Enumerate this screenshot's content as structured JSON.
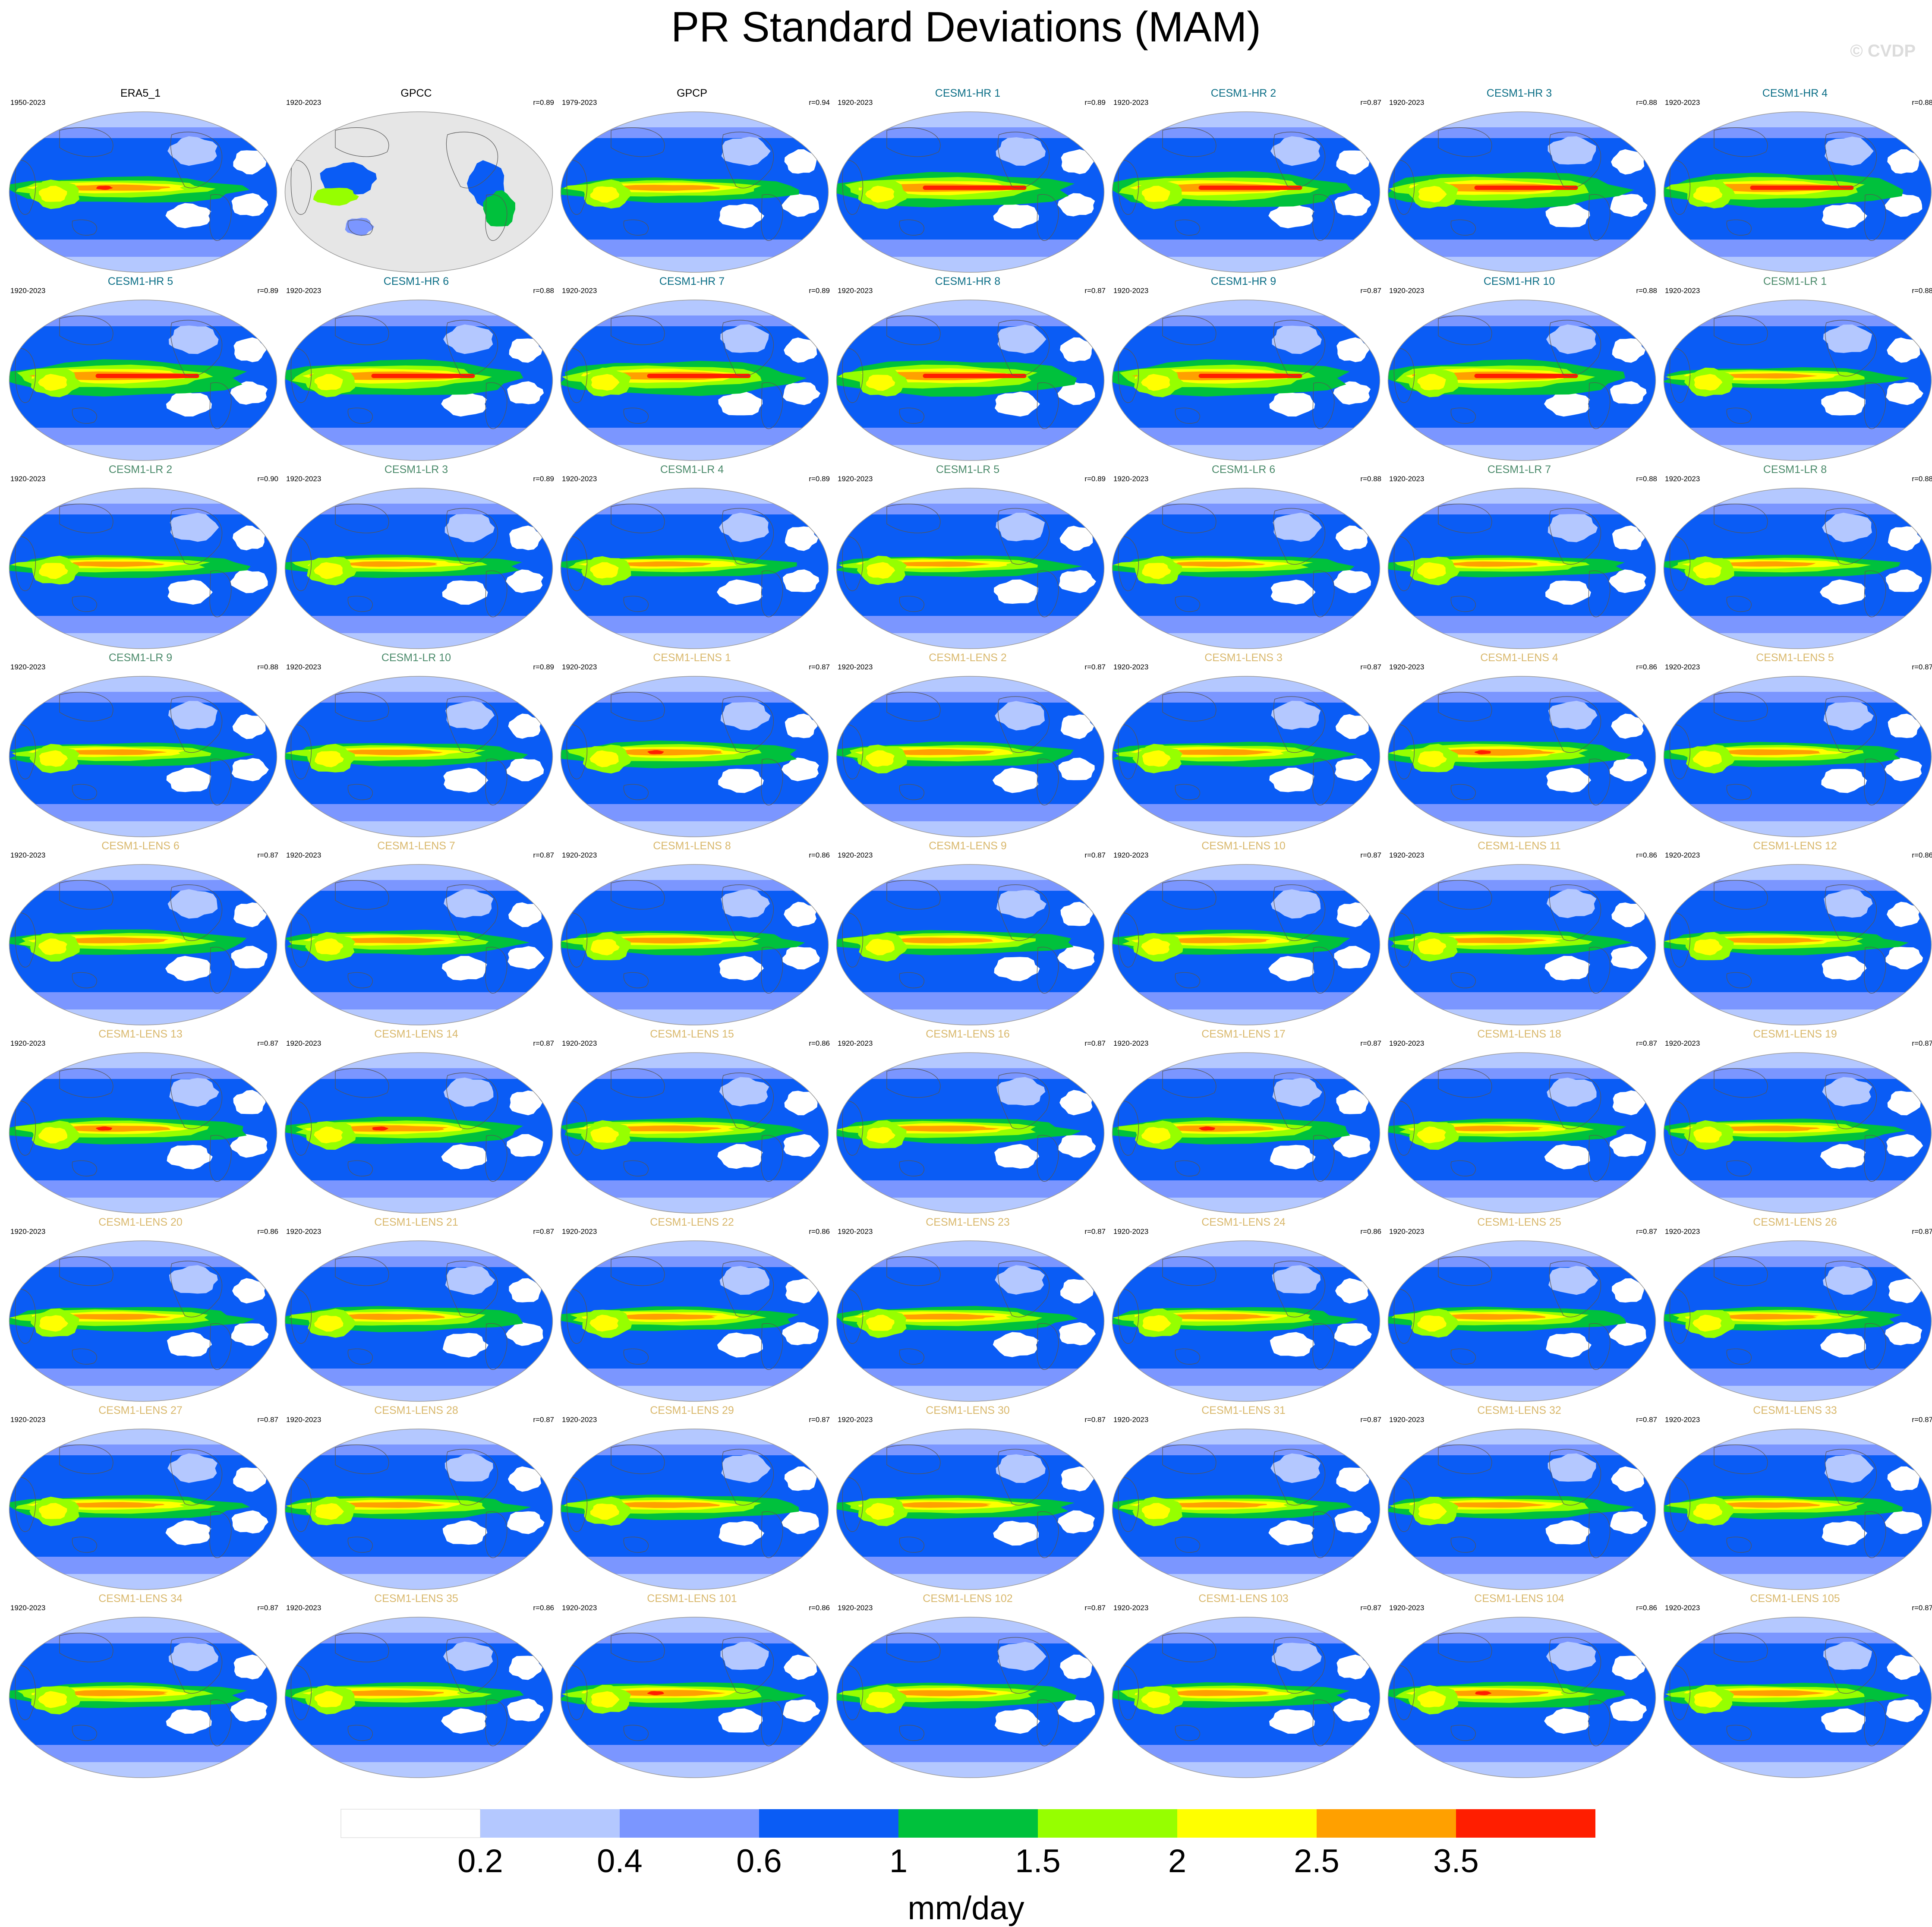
{
  "title": "PR Standard Deviations (MAM)",
  "watermark": "© CVDP",
  "colors": {
    "obs_title": "#000000",
    "cesm1_hr_title": "#0b6e86",
    "cesm1_lr_title": "#4a8a6a",
    "cesm1_lens_title": "#d9b86c",
    "land_mask": "#e6e6e6",
    "outline": "#9a9a9a",
    "coast": "#555555"
  },
  "chart_data": {
    "type": "heatmap",
    "projection": "Robinson-like global map, Pacific-centered",
    "units": "mm/day",
    "colorbar": {
      "levels": [
        0.2,
        0.4,
        0.6,
        1,
        1.5,
        2,
        2.5,
        3.5
      ],
      "tick_labels": [
        "0.2",
        "0.4",
        "0.6",
        "1",
        "1.5",
        "2",
        "2.5",
        "3.5"
      ],
      "colors": [
        "#ffffff",
        "#b4c8ff",
        "#7b96ff",
        "#0a5cf5",
        "#00c13c",
        "#96ff00",
        "#ffff00",
        "#ffa000",
        "#ff1e00"
      ]
    },
    "panels": [
      {
        "name": "ERA5_1",
        "years": "1950-2023",
        "r": "",
        "group": "obs",
        "amp": 0.95
      },
      {
        "name": "GPCC",
        "years": "1920-2023",
        "r": "r=0.89",
        "group": "obs",
        "amp": 0.6,
        "land_only": true
      },
      {
        "name": "GPCP",
        "years": "1979-2023",
        "r": "r=0.94",
        "group": "obs",
        "amp": 0.9
      },
      {
        "name": "CESM1-HR 1",
        "years": "1920-2023",
        "r": "r=0.89",
        "group": "hr",
        "amp": 1.25
      },
      {
        "name": "CESM1-HR 2",
        "years": "1920-2023",
        "r": "r=0.87",
        "group": "hr",
        "amp": 1.3
      },
      {
        "name": "CESM1-HR 3",
        "years": "1920-2023",
        "r": "r=0.88",
        "group": "hr",
        "amp": 1.3
      },
      {
        "name": "CESM1-HR 4",
        "years": "1920-2023",
        "r": "r=0.88",
        "group": "hr",
        "amp": 1.25
      },
      {
        "name": "CESM1-HR 5",
        "years": "1920-2023",
        "r": "r=0.89",
        "group": "hr",
        "amp": 1.3
      },
      {
        "name": "CESM1-HR 6",
        "years": "1920-2023",
        "r": "r=0.88",
        "group": "hr",
        "amp": 1.3
      },
      {
        "name": "CESM1-HR 7",
        "years": "1920-2023",
        "r": "r=0.89",
        "group": "hr",
        "amp": 1.25
      },
      {
        "name": "CESM1-HR 8",
        "years": "1920-2023",
        "r": "r=0.87",
        "group": "hr",
        "amp": 1.3
      },
      {
        "name": "CESM1-HR 9",
        "years": "1920-2023",
        "r": "r=0.87",
        "group": "hr",
        "amp": 1.3
      },
      {
        "name": "CESM1-HR 10",
        "years": "1920-2023",
        "r": "r=0.88",
        "group": "hr",
        "amp": 1.3
      },
      {
        "name": "CESM1-LR 1",
        "years": "1920-2023",
        "r": "r=0.88",
        "group": "lr",
        "amp": 0.78
      },
      {
        "name": "CESM1-LR 2",
        "years": "1920-2023",
        "r": "r=0.90",
        "group": "lr",
        "amp": 0.82
      },
      {
        "name": "CESM1-LR 3",
        "years": "1920-2023",
        "r": "r=0.89",
        "group": "lr",
        "amp": 0.82
      },
      {
        "name": "CESM1-LR 4",
        "years": "1920-2023",
        "r": "r=0.89",
        "group": "lr",
        "amp": 0.78
      },
      {
        "name": "CESM1-LR 5",
        "years": "1920-2023",
        "r": "r=0.89",
        "group": "lr",
        "amp": 0.78
      },
      {
        "name": "CESM1-LR 6",
        "years": "1920-2023",
        "r": "r=0.88",
        "group": "lr",
        "amp": 0.78
      },
      {
        "name": "CESM1-LR 7",
        "years": "1920-2023",
        "r": "r=0.88",
        "group": "lr",
        "amp": 0.78
      },
      {
        "name": "CESM1-LR 8",
        "years": "1920-2023",
        "r": "r=0.88",
        "group": "lr",
        "amp": 0.8
      },
      {
        "name": "CESM1-LR 9",
        "years": "1920-2023",
        "r": "r=0.88",
        "group": "lr",
        "amp": 0.85
      },
      {
        "name": "CESM1-LR 10",
        "years": "1920-2023",
        "r": "r=0.89",
        "group": "lr",
        "amp": 0.85
      },
      {
        "name": "CESM1-LENS 1",
        "years": "1920-2023",
        "r": "r=0.87",
        "group": "lens",
        "amp": 0.97
      },
      {
        "name": "CESM1-LENS 2",
        "years": "1920-2023",
        "r": "r=0.87",
        "group": "lens",
        "amp": 0.9
      },
      {
        "name": "CESM1-LENS 3",
        "years": "1920-2023",
        "r": "r=0.87",
        "group": "lens",
        "amp": 0.9
      },
      {
        "name": "CESM1-LENS 4",
        "years": "1920-2023",
        "r": "r=0.86",
        "group": "lens",
        "amp": 1.0
      },
      {
        "name": "CESM1-LENS 5",
        "years": "1920-2023",
        "r": "r=0.87",
        "group": "lens",
        "amp": 0.88
      },
      {
        "name": "CESM1-LENS 6",
        "years": "1920-2023",
        "r": "r=0.87",
        "group": "lens",
        "amp": 0.92
      },
      {
        "name": "CESM1-LENS 7",
        "years": "1920-2023",
        "r": "r=0.87",
        "group": "lens",
        "amp": 0.9
      },
      {
        "name": "CESM1-LENS 8",
        "years": "1920-2023",
        "r": "r=0.86",
        "group": "lens",
        "amp": 0.9
      },
      {
        "name": "CESM1-LENS 9",
        "years": "1920-2023",
        "r": "r=0.87",
        "group": "lens",
        "amp": 0.88
      },
      {
        "name": "CESM1-LENS 10",
        "years": "1920-2023",
        "r": "r=0.87",
        "group": "lens",
        "amp": 0.9
      },
      {
        "name": "CESM1-LENS 11",
        "years": "1920-2023",
        "r": "r=0.86",
        "group": "lens",
        "amp": 0.88
      },
      {
        "name": "CESM1-LENS 12",
        "years": "1920-2023",
        "r": "r=0.86",
        "group": "lens",
        "amp": 0.88
      },
      {
        "name": "CESM1-LENS 13",
        "years": "1920-2023",
        "r": "r=0.87",
        "group": "lens",
        "amp": 0.95
      },
      {
        "name": "CESM1-LENS 14",
        "years": "1920-2023",
        "r": "r=0.87",
        "group": "lens",
        "amp": 0.98
      },
      {
        "name": "CESM1-LENS 15",
        "years": "1920-2023",
        "r": "r=0.86",
        "group": "lens",
        "amp": 0.92
      },
      {
        "name": "CESM1-LENS 16",
        "years": "1920-2023",
        "r": "r=0.87",
        "group": "lens",
        "amp": 0.92
      },
      {
        "name": "CESM1-LENS 17",
        "years": "1920-2023",
        "r": "r=0.87",
        "group": "lens",
        "amp": 0.95
      },
      {
        "name": "CESM1-LENS 18",
        "years": "1920-2023",
        "r": "r=0.87",
        "group": "lens",
        "amp": 0.85
      },
      {
        "name": "CESM1-LENS 19",
        "years": "1920-2023",
        "r": "r=0.87",
        "group": "lens",
        "amp": 0.85
      },
      {
        "name": "CESM1-LENS 20",
        "years": "1920-2023",
        "r": "r=0.86",
        "group": "lens",
        "amp": 0.9
      },
      {
        "name": "CESM1-LENS 21",
        "years": "1920-2023",
        "r": "r=0.87",
        "group": "lens",
        "amp": 0.92
      },
      {
        "name": "CESM1-LENS 22",
        "years": "1920-2023",
        "r": "r=0.86",
        "group": "lens",
        "amp": 0.88
      },
      {
        "name": "CESM1-LENS 23",
        "years": "1920-2023",
        "r": "r=0.87",
        "group": "lens",
        "amp": 0.9
      },
      {
        "name": "CESM1-LENS 24",
        "years": "1920-2023",
        "r": "r=0.86",
        "group": "lens",
        "amp": 0.88
      },
      {
        "name": "CESM1-LENS 25",
        "years": "1920-2023",
        "r": "r=0.87",
        "group": "lens",
        "amp": 0.88
      },
      {
        "name": "CESM1-LENS 26",
        "years": "1920-2023",
        "r": "r=0.87",
        "group": "lens",
        "amp": 0.85
      },
      {
        "name": "CESM1-LENS 27",
        "years": "1920-2023",
        "r": "r=0.87",
        "group": "lens",
        "amp": 0.85
      },
      {
        "name": "CESM1-LENS 28",
        "years": "1920-2023",
        "r": "r=0.87",
        "group": "lens",
        "amp": 0.88
      },
      {
        "name": "CESM1-LENS 29",
        "years": "1920-2023",
        "r": "r=0.87",
        "group": "lens",
        "amp": 0.9
      },
      {
        "name": "CESM1-LENS 30",
        "years": "1920-2023",
        "r": "r=0.87",
        "group": "lens",
        "amp": 0.85
      },
      {
        "name": "CESM1-LENS 31",
        "years": "1920-2023",
        "r": "r=0.87",
        "group": "lens",
        "amp": 0.85
      },
      {
        "name": "CESM1-LENS 32",
        "years": "1920-2023",
        "r": "r=0.87",
        "group": "lens",
        "amp": 0.85
      },
      {
        "name": "CESM1-LENS 33",
        "years": "1920-2023",
        "r": "r=0.87",
        "group": "lens",
        "amp": 0.85
      },
      {
        "name": "CESM1-LENS 34",
        "years": "1920-2023",
        "r": "r=0.87",
        "group": "lens",
        "amp": 0.92
      },
      {
        "name": "CESM1-LENS 35",
        "years": "1920-2023",
        "r": "r=0.86",
        "group": "lens",
        "amp": 0.92
      },
      {
        "name": "CESM1-LENS 101",
        "years": "1920-2023",
        "r": "r=0.86",
        "group": "lens",
        "amp": 0.95
      },
      {
        "name": "CESM1-LENS 102",
        "years": "1920-2023",
        "r": "r=0.87",
        "group": "lens",
        "amp": 0.92
      },
      {
        "name": "CESM1-LENS 103",
        "years": "1920-2023",
        "r": "r=0.87",
        "group": "lens",
        "amp": 0.9
      },
      {
        "name": "CESM1-LENS 104",
        "years": "1920-2023",
        "r": "r=0.86",
        "group": "lens",
        "amp": 0.95
      },
      {
        "name": "CESM1-LENS 105",
        "years": "1920-2023",
        "r": "r=0.87",
        "group": "lens",
        "amp": 0.9
      }
    ]
  },
  "colorbar_units": "mm/day"
}
